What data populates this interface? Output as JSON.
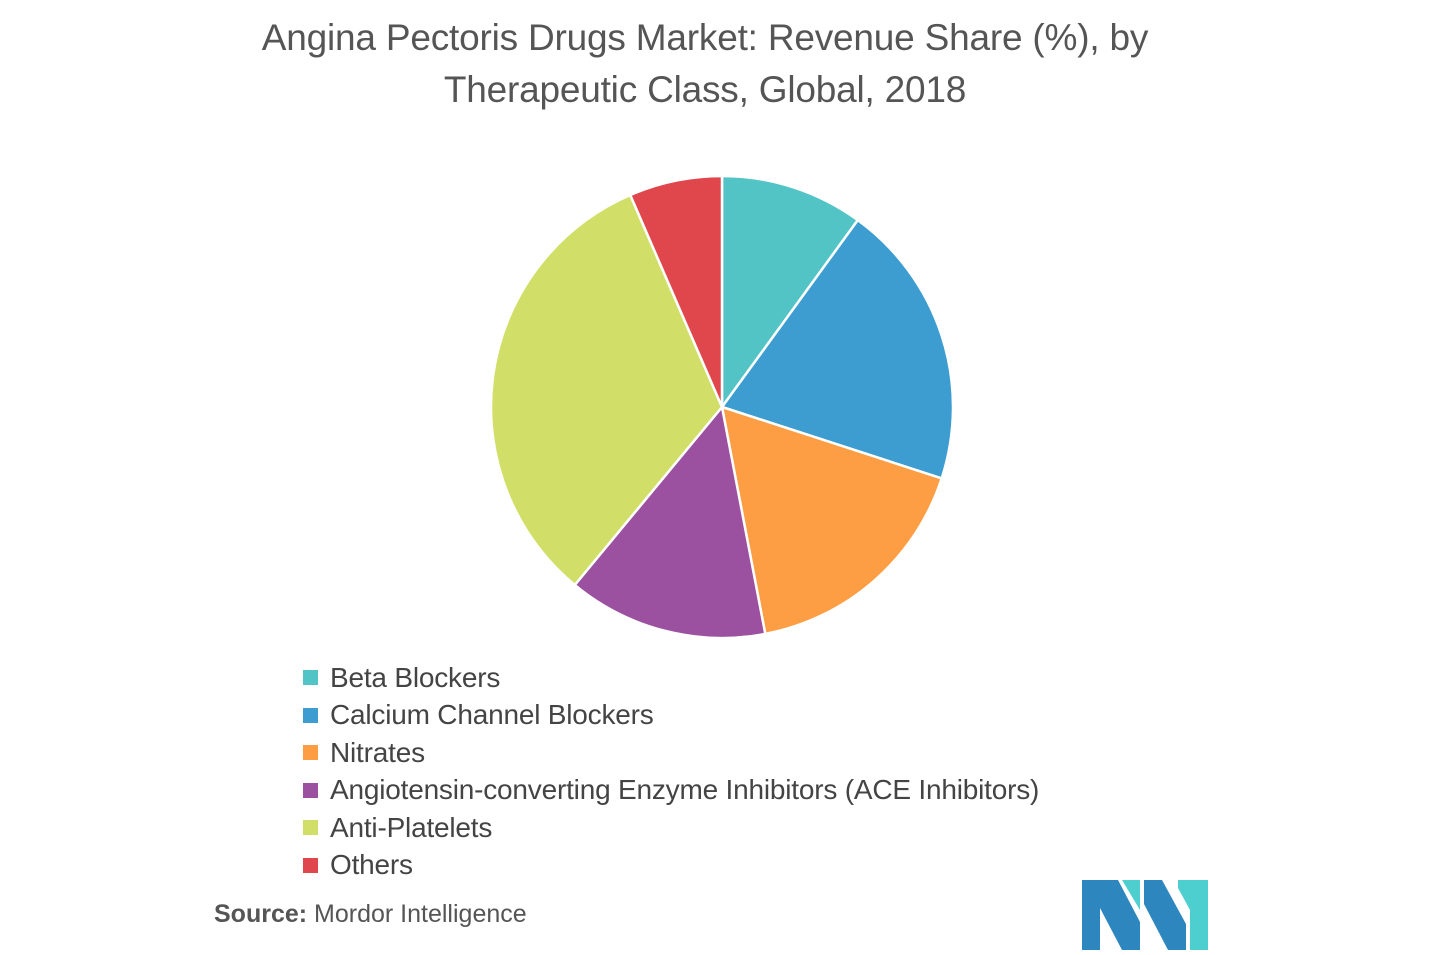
{
  "title_line1": "Angina Pectoris Drugs Market: Revenue Share (%), by",
  "title_line2": "Therapeutic Class, Global, 2018",
  "chart_data": {
    "type": "pie",
    "title": "Angina Pectoris Drugs Market: Revenue Share (%), by Therapeutic Class, Global, 2018",
    "slices": [
      {
        "label": "Beta Blockers",
        "value": 10,
        "color": "#53c4c6"
      },
      {
        "label": "Calcium Channel Blockers",
        "value": 20,
        "color": "#3d9dd0"
      },
      {
        "label": "Nitrates",
        "value": 17,
        "color": "#fd9e44"
      },
      {
        "label": "Angiotensin-converting Enzyme Inhibitors (ACE Inhibitors)",
        "value": 14,
        "color": "#9b51a0"
      },
      {
        "label": "Anti-Platelets",
        "value": 32.5,
        "color": "#d1df69"
      },
      {
        "label": "Others",
        "value": 6.5,
        "color": "#e0474c"
      }
    ],
    "legend_position": "bottom"
  },
  "source": {
    "label": "Source:",
    "text": " Mordor Intelligence"
  },
  "logo": {
    "dark_color": "#2e86be",
    "light_color": "#4ecfcf"
  }
}
